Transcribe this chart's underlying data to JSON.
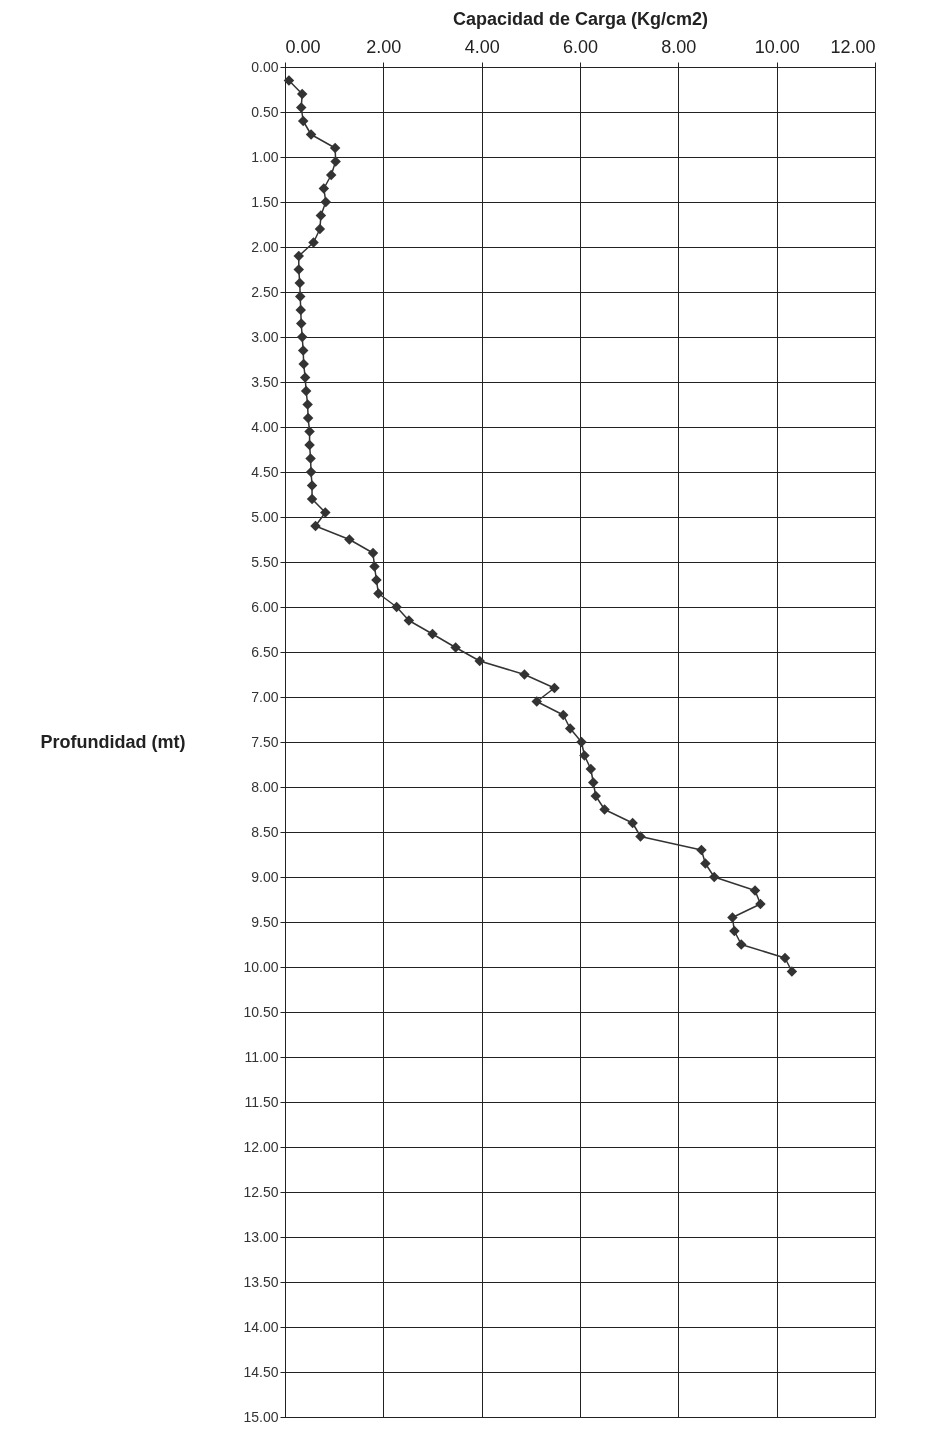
{
  "chart_data": {
    "type": "line",
    "xlabel": "Capacidad de Carga (Kg/cm2)",
    "ylabel": "Profundidad (mt)",
    "xlim": [
      0,
      12
    ],
    "ylim": [
      15,
      0
    ],
    "xticks": [
      {
        "value": 0,
        "label": "0.00"
      },
      {
        "value": 2,
        "label": "2.00"
      },
      {
        "value": 4,
        "label": "4.00"
      },
      {
        "value": 6,
        "label": "6.00"
      },
      {
        "value": 8,
        "label": "8.00"
      },
      {
        "value": 10,
        "label": "10.00"
      },
      {
        "value": 12,
        "label": "12.00"
      }
    ],
    "yticks": [
      {
        "value": 0,
        "label": "0.00"
      },
      {
        "value": 0.5,
        "label": "0.50"
      },
      {
        "value": 1,
        "label": "1.00"
      },
      {
        "value": 1.5,
        "label": "1.50"
      },
      {
        "value": 2,
        "label": "2.00"
      },
      {
        "value": 2.5,
        "label": "2.50"
      },
      {
        "value": 3,
        "label": "3.00"
      },
      {
        "value": 3.5,
        "label": "3.50"
      },
      {
        "value": 4,
        "label": "4.00"
      },
      {
        "value": 4.5,
        "label": "4.50"
      },
      {
        "value": 5,
        "label": "5.00"
      },
      {
        "value": 5.5,
        "label": "5.50"
      },
      {
        "value": 6,
        "label": "6.00"
      },
      {
        "value": 6.5,
        "label": "6.50"
      },
      {
        "value": 7,
        "label": "7.00"
      },
      {
        "value": 7.5,
        "label": "7.50"
      },
      {
        "value": 8,
        "label": "8.00"
      },
      {
        "value": 8.5,
        "label": "8.50"
      },
      {
        "value": 9,
        "label": "9.00"
      },
      {
        "value": 9.5,
        "label": "9.50"
      },
      {
        "value": 10,
        "label": "10.00"
      },
      {
        "value": 10.5,
        "label": "10.50"
      },
      {
        "value": 11,
        "label": "11.00"
      },
      {
        "value": 11.5,
        "label": "11.50"
      },
      {
        "value": 12,
        "label": "12.00"
      },
      {
        "value": 12.5,
        "label": "12.50"
      },
      {
        "value": 13,
        "label": "13.00"
      },
      {
        "value": 13.5,
        "label": "13.50"
      },
      {
        "value": 14,
        "label": "14.00"
      },
      {
        "value": 14.5,
        "label": "14.50"
      },
      {
        "value": 15,
        "label": "15.00"
      }
    ],
    "grid": true,
    "marker": "diamond",
    "line_style": "solid",
    "series": [
      {
        "color": "#333333",
        "x": [
          0.08,
          0.35,
          0.33,
          0.37,
          0.53,
          1.02,
          1.03,
          0.94,
          0.79,
          0.83,
          0.73,
          0.71,
          0.58,
          0.28,
          0.28,
          0.3,
          0.31,
          0.32,
          0.33,
          0.35,
          0.37,
          0.38,
          0.41,
          0.43,
          0.46,
          0.47,
          0.5,
          0.5,
          0.52,
          0.53,
          0.55,
          0.55,
          0.82,
          0.62,
          1.31,
          1.79,
          1.82,
          1.86,
          1.9,
          2.27,
          2.52,
          3.0,
          3.47,
          3.96,
          4.87,
          5.48,
          5.12,
          5.66,
          5.8,
          6.03,
          6.09,
          6.22,
          6.27,
          6.32,
          6.5,
          7.07,
          7.23,
          8.47,
          8.55,
          8.73,
          9.56,
          9.67,
          9.1,
          9.14,
          9.28,
          10.17,
          10.31
        ],
        "values": [
          0.15,
          0.3,
          0.45,
          0.6,
          0.75,
          0.9,
          1.05,
          1.2,
          1.35,
          1.5,
          1.65,
          1.8,
          1.95,
          2.1,
          2.25,
          2.4,
          2.55,
          2.7,
          2.85,
          3.0,
          3.15,
          3.3,
          3.45,
          3.6,
          3.75,
          3.9,
          4.05,
          4.2,
          4.35,
          4.5,
          4.65,
          4.8,
          4.95,
          5.1,
          5.25,
          5.4,
          5.55,
          5.7,
          5.85,
          6.0,
          6.15,
          6.3,
          6.45,
          6.6,
          6.75,
          6.9,
          7.05,
          7.2,
          7.35,
          7.5,
          7.65,
          7.8,
          7.95,
          8.1,
          8.25,
          8.4,
          8.55,
          8.7,
          8.85,
          9.0,
          9.15,
          9.3,
          9.45,
          9.6,
          9.75,
          9.9,
          10.05
        ]
      }
    ]
  }
}
